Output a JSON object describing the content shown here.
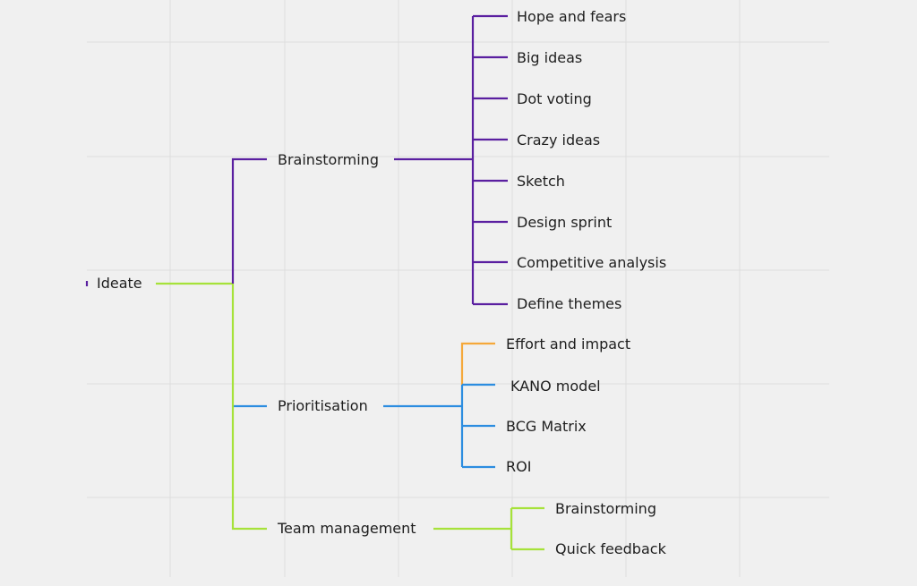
{
  "colors": {
    "purple": "#5a1fa0",
    "blue": "#2c8de0",
    "green": "#a6e23a",
    "orange": "#f5a83a",
    "grid": "#dedede"
  },
  "root": {
    "label": "Ideate"
  },
  "branches": [
    {
      "label": "Brainstorming",
      "children": [
        "Hope and fears",
        "Big ideas",
        "Dot voting",
        "Crazy ideas",
        "Sketch",
        "Design sprint",
        "Competitive analysis",
        "Define themes"
      ]
    },
    {
      "label": "Prioritisation",
      "children": [
        "Effort and impact",
        "KANO model",
        "BCG Matrix",
        "ROI"
      ]
    },
    {
      "label": "Team management",
      "children": [
        "Brainstorming",
        "Quick feedback"
      ]
    }
  ]
}
